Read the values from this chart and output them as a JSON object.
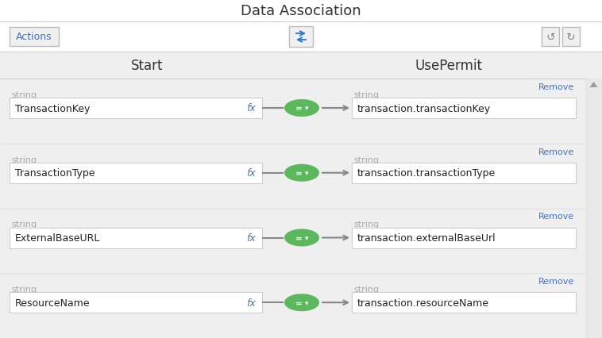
{
  "title": "Data Association",
  "background_color": "#efefef",
  "white": "#ffffff",
  "panel_bg": "#efefef",
  "left_header": "Start",
  "right_header": "UsePermit",
  "rows": [
    {
      "left_label": "TransactionKey",
      "right_label": "transaction.transactionKey"
    },
    {
      "left_label": "TransactionType",
      "right_label": "transaction.transactionType"
    },
    {
      "left_label": "ExternalBaseURL",
      "right_label": "transaction.externalBaseUrl"
    },
    {
      "left_label": "ResourceName",
      "right_label": "transaction.resourceName"
    }
  ],
  "type_label": "string",
  "remove_label": "Remove",
  "remove_color": "#4472c4",
  "string_color": "#aaaaaa",
  "green_color": "#5cb85c",
  "fx_color": "#4472c4",
  "actions_btn": "Actions",
  "title_color": "#333333",
  "header_text_color": "#333333",
  "title_fontsize": 13,
  "header_fontsize": 12,
  "label_fontsize": 9,
  "string_fontsize": 8,
  "remove_fontsize": 8,
  "fx_fontsize": 9
}
